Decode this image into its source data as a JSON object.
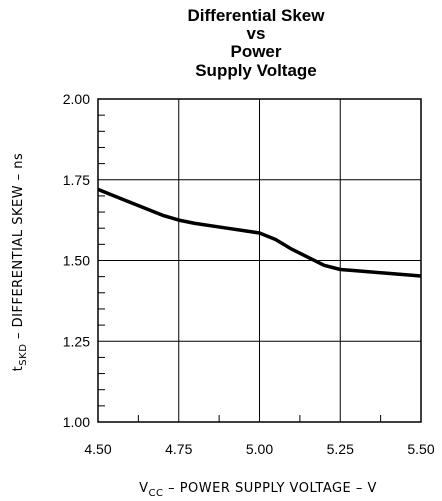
{
  "chart_data": {
    "type": "line",
    "title_lines": [
      "Differential Skew",
      "vs",
      "Power",
      "Supply Voltage"
    ],
    "xlabel": {
      "main": "V",
      "sub": "CC",
      "rest": " – POWER SUPPLY VOLTAGE – V"
    },
    "ylabel": {
      "main": "t",
      "sub": "SKD",
      "rest": " – DIFFERENTIAL SKEW – ns"
    },
    "xlim": [
      4.5,
      5.5
    ],
    "ylim": [
      1.0,
      2.0
    ],
    "x_ticks": [
      "4.50",
      "4.75",
      "5.00",
      "5.25",
      "5.50"
    ],
    "y_ticks": [
      "1.00",
      "1.25",
      "1.50",
      "1.75",
      "2.00"
    ],
    "grid": true,
    "series": [
      {
        "x": [
          4.5,
          4.6,
          4.7,
          4.75,
          4.8,
          4.9,
          5.0,
          5.05,
          5.1,
          5.2,
          5.25,
          5.3,
          5.4,
          5.5
        ],
        "y": [
          1.72,
          1.68,
          1.64,
          1.625,
          1.615,
          1.6,
          1.585,
          1.565,
          1.535,
          1.485,
          1.472,
          1.468,
          1.46,
          1.452
        ]
      }
    ]
  }
}
